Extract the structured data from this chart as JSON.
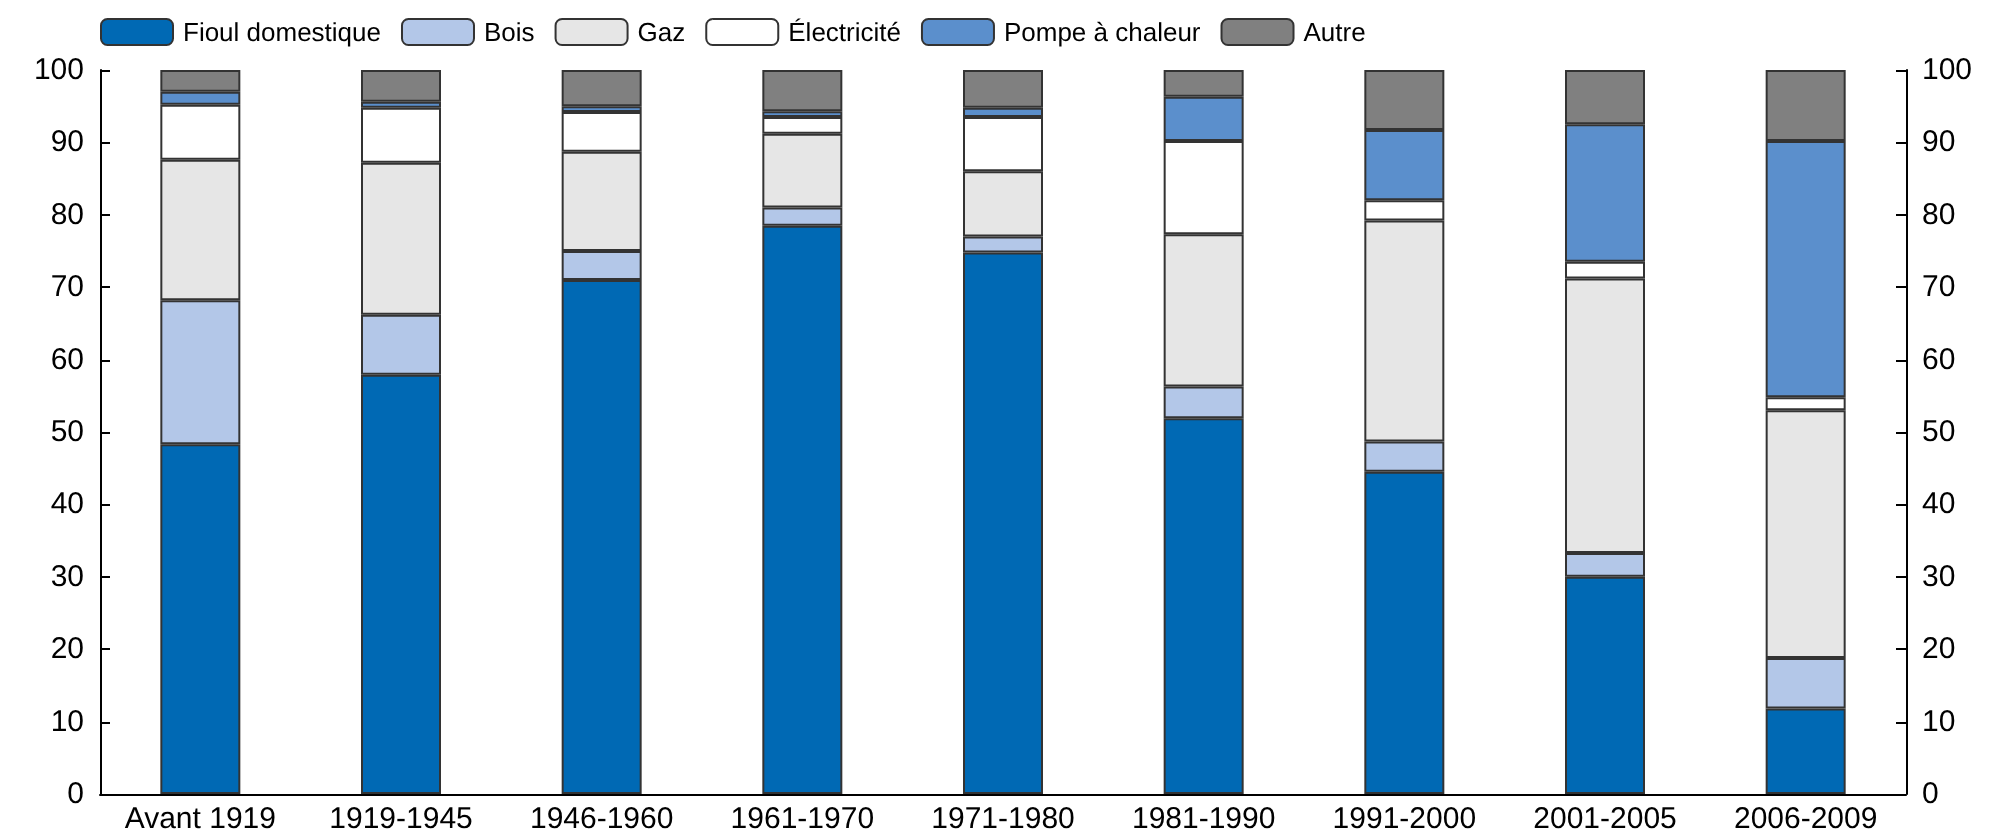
{
  "chart_data": {
    "type": "bar",
    "stacked": true,
    "categories": [
      "Avant 1919",
      "1919-1945",
      "1946-1960",
      "1961-1970",
      "1971-1980",
      "1981-1990",
      "1991-2000",
      "2001-2005",
      "2006-2009"
    ],
    "series": [
      {
        "name": "Fioul domestique",
        "color": "#0069b4",
        "values": [
          48.3,
          57.9,
          71,
          78.5,
          74.8,
          51.9,
          44.5,
          30,
          11.8
        ]
      },
      {
        "name": "Bois",
        "color": "#b3c7e8",
        "values": [
          19.9,
          8.3,
          4,
          2.5,
          2.2,
          4.4,
          4.2,
          3.3,
          7
        ]
      },
      {
        "name": "Gaz",
        "color": "#e6e6e6",
        "values": [
          19.4,
          21,
          13.7,
          10.2,
          9,
          21,
          30.5,
          37.9,
          34.2
        ]
      },
      {
        "name": "Électricité",
        "color": "#ffffff",
        "values": [
          7.6,
          7.6,
          5.5,
          2.3,
          7.5,
          12.9,
          2.8,
          2.3,
          1.8
        ]
      },
      {
        "name": "Pompe à chaleur",
        "color": "#5b8fcc",
        "values": [
          1.8,
          0.8,
          0.8,
          0.8,
          1.3,
          6.1,
          9.7,
          19,
          35.4
        ]
      },
      {
        "name": "Autre",
        "color": "#808080",
        "values": [
          3,
          4.4,
          5,
          5.7,
          5.2,
          3.7,
          8.3,
          7.5,
          9.8
        ]
      }
    ],
    "ylim": [
      0,
      100
    ],
    "yticks": [
      0,
      10,
      20,
      30,
      40,
      50,
      60,
      70,
      80,
      90,
      100
    ],
    "y2lim": [
      0,
      100
    ],
    "y2ticks": [
      0,
      10,
      20,
      30,
      40,
      50,
      60,
      70,
      80,
      90,
      100
    ],
    "grid": false,
    "legend": "top"
  }
}
